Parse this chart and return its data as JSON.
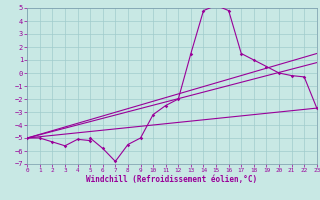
{
  "xlabel": "Windchill (Refroidissement éolien,°C)",
  "xlim": [
    0,
    23
  ],
  "ylim": [
    -7,
    5
  ],
  "yticks": [
    5,
    4,
    3,
    2,
    1,
    0,
    -1,
    -2,
    -3,
    -4,
    -5,
    -6,
    -7
  ],
  "xticks": [
    0,
    1,
    2,
    3,
    4,
    5,
    6,
    7,
    8,
    9,
    10,
    11,
    12,
    13,
    14,
    15,
    16,
    17,
    18,
    19,
    20,
    21,
    22,
    23
  ],
  "bg_color": "#c8e8e4",
  "grid_color": "#a0cccc",
  "line_color": "#990099",
  "line1_x": [
    0,
    1,
    2,
    3,
    4,
    5,
    5,
    6,
    7,
    8,
    9,
    10,
    11,
    12,
    13,
    14,
    15,
    16,
    17,
    18,
    19,
    20,
    21,
    22,
    23
  ],
  "line1_y": [
    -5.0,
    -5.0,
    -5.3,
    -5.6,
    -5.1,
    -5.2,
    -5.0,
    -5.8,
    -6.8,
    -5.5,
    -5.0,
    -3.2,
    -2.5,
    -2.0,
    1.5,
    4.8,
    5.2,
    4.8,
    1.5,
    1.0,
    0.5,
    0.0,
    -0.2,
    -0.3,
    -2.7
  ],
  "line2_x": [
    0,
    23
  ],
  "line2_y": [
    -5.0,
    1.5
  ],
  "line3_x": [
    0,
    23
  ],
  "line3_y": [
    -5.0,
    0.8
  ],
  "line4_x": [
    0,
    23
  ],
  "line4_y": [
    -5.0,
    -2.7
  ]
}
